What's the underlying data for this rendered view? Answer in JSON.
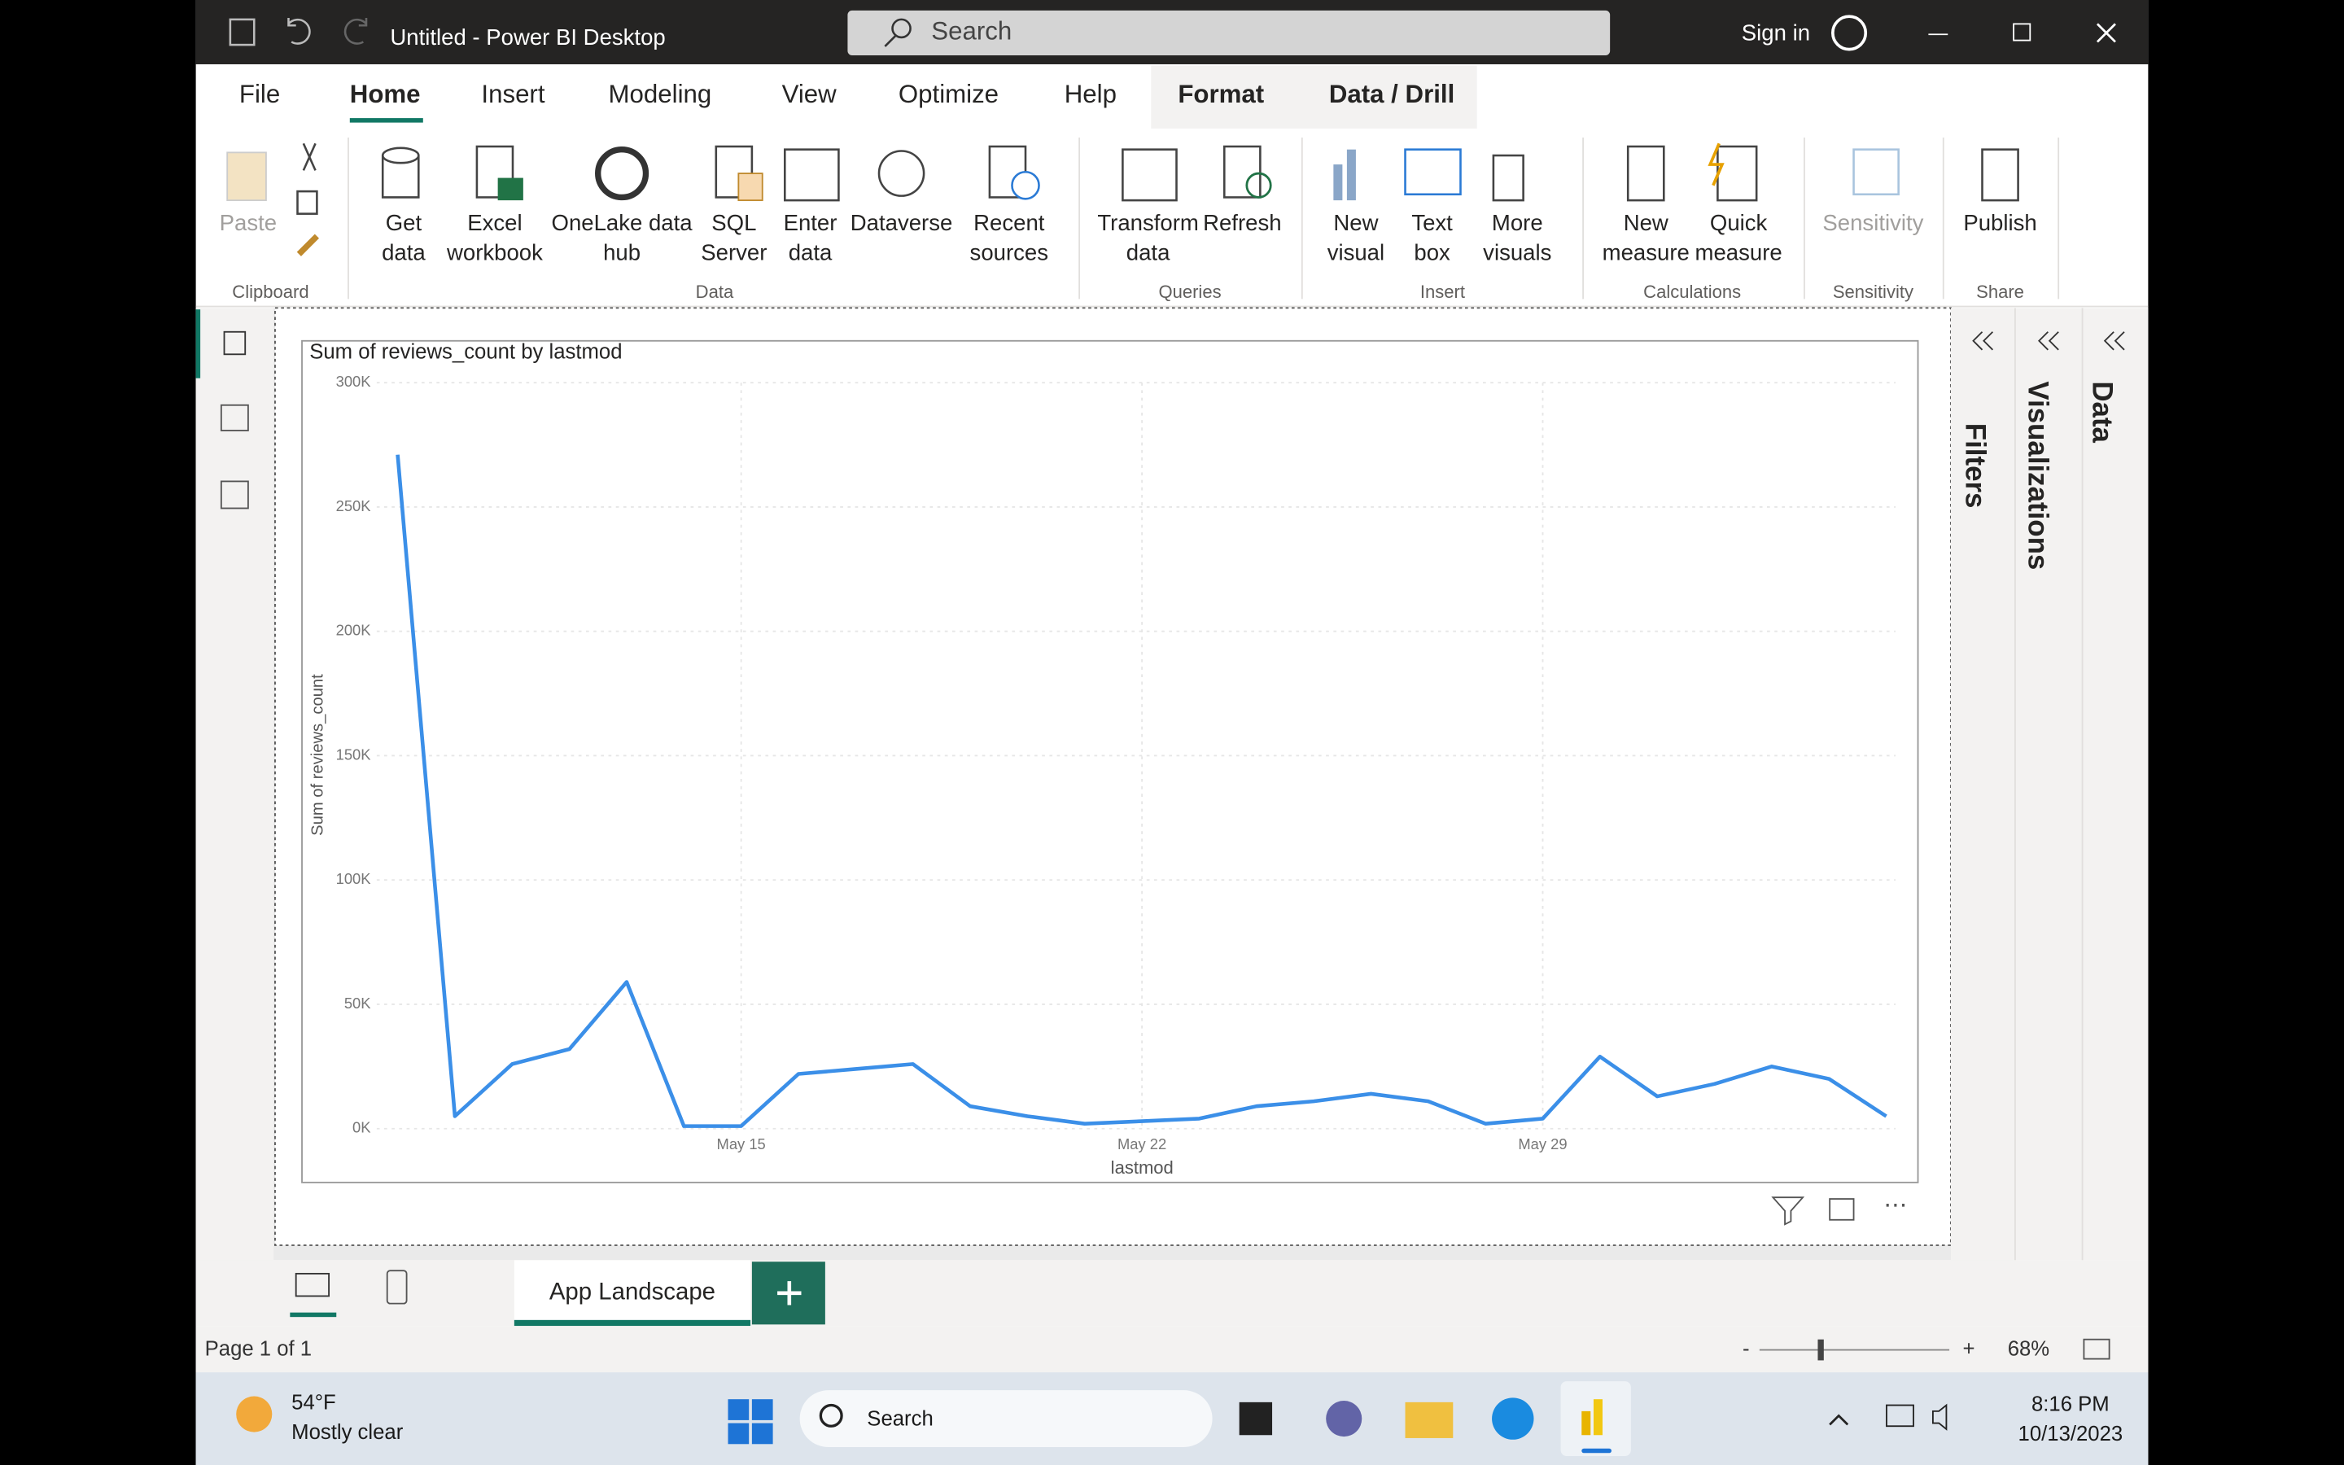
{
  "window": {
    "title": "Untitled - Power BI Desktop",
    "search": "Search",
    "sign_in": "Sign in"
  },
  "menu": [
    "File",
    "Home",
    "Insert",
    "Modeling",
    "View",
    "Optimize",
    "Help",
    "Format",
    "Data / Drill"
  ],
  "ribbon": {
    "buttons": [
      [
        "Paste"
      ],
      [
        "Get",
        "data"
      ],
      [
        "Excel",
        "workbook"
      ],
      [
        "OneLake data",
        "hub"
      ],
      [
        "SQL",
        "Server"
      ],
      [
        "Enter",
        "data"
      ],
      [
        "Dataverse"
      ],
      [
        "Recent",
        "sources"
      ],
      [
        "Transform",
        "data"
      ],
      [
        "Refresh"
      ],
      [
        "New",
        "visual"
      ],
      [
        "Text",
        "box"
      ],
      [
        "More",
        "visuals"
      ],
      [
        "New",
        "measure"
      ],
      [
        "Quick",
        "measure"
      ],
      [
        "Sensitivity"
      ],
      [
        "Publish"
      ]
    ],
    "groups": [
      "Clipboard",
      "Data",
      "Queries",
      "Insert",
      "Calculations",
      "Sensitivity",
      "Share"
    ]
  },
  "panes": [
    "Filters",
    "Visualizations",
    "Data"
  ],
  "chart_data": {
    "type": "line",
    "title": "Sum of reviews_count by lastmod",
    "x_label": "lastmod",
    "y_label": "Sum of reviews_count",
    "categories": [
      null,
      null,
      null,
      null,
      null,
      null,
      "May 15",
      null,
      null,
      null,
      null,
      null,
      null,
      "May 22",
      null,
      null,
      null,
      null,
      null,
      null,
      "May 29",
      null,
      null,
      null,
      null,
      null,
      null
    ],
    "values": [
      271000,
      5000,
      26000,
      32000,
      59000,
      1000,
      1000,
      22000,
      24000,
      26000,
      9000,
      5000,
      2000,
      3000,
      4000,
      9000,
      11000,
      14000,
      11000,
      2000,
      4000,
      29000,
      13000,
      18000,
      25000,
      20000,
      5000
    ],
    "color": "#3b8fe8",
    "ylim": [
      0,
      300000
    ],
    "yticks": [
      {
        "value": 0,
        "label": "0K"
      },
      {
        "value": 50000,
        "label": "50K"
      },
      {
        "value": 100000,
        "label": "100K"
      },
      {
        "value": 150000,
        "label": "150K"
      },
      {
        "value": 200000,
        "label": "200K"
      },
      {
        "value": 250000,
        "label": "250K"
      },
      {
        "value": 300000,
        "label": "300K"
      }
    ],
    "grid": true
  },
  "tabs": {
    "page": "App Landscape"
  },
  "status": {
    "page": "Page 1 of 1",
    "zoom_out": "-",
    "zoom_in": "+",
    "zoom": "68%"
  },
  "taskbar": {
    "temperature": "54°F",
    "weather": "Mostly clear",
    "search": "Search",
    "time": "8:16 PM",
    "date": "10/13/2023"
  }
}
